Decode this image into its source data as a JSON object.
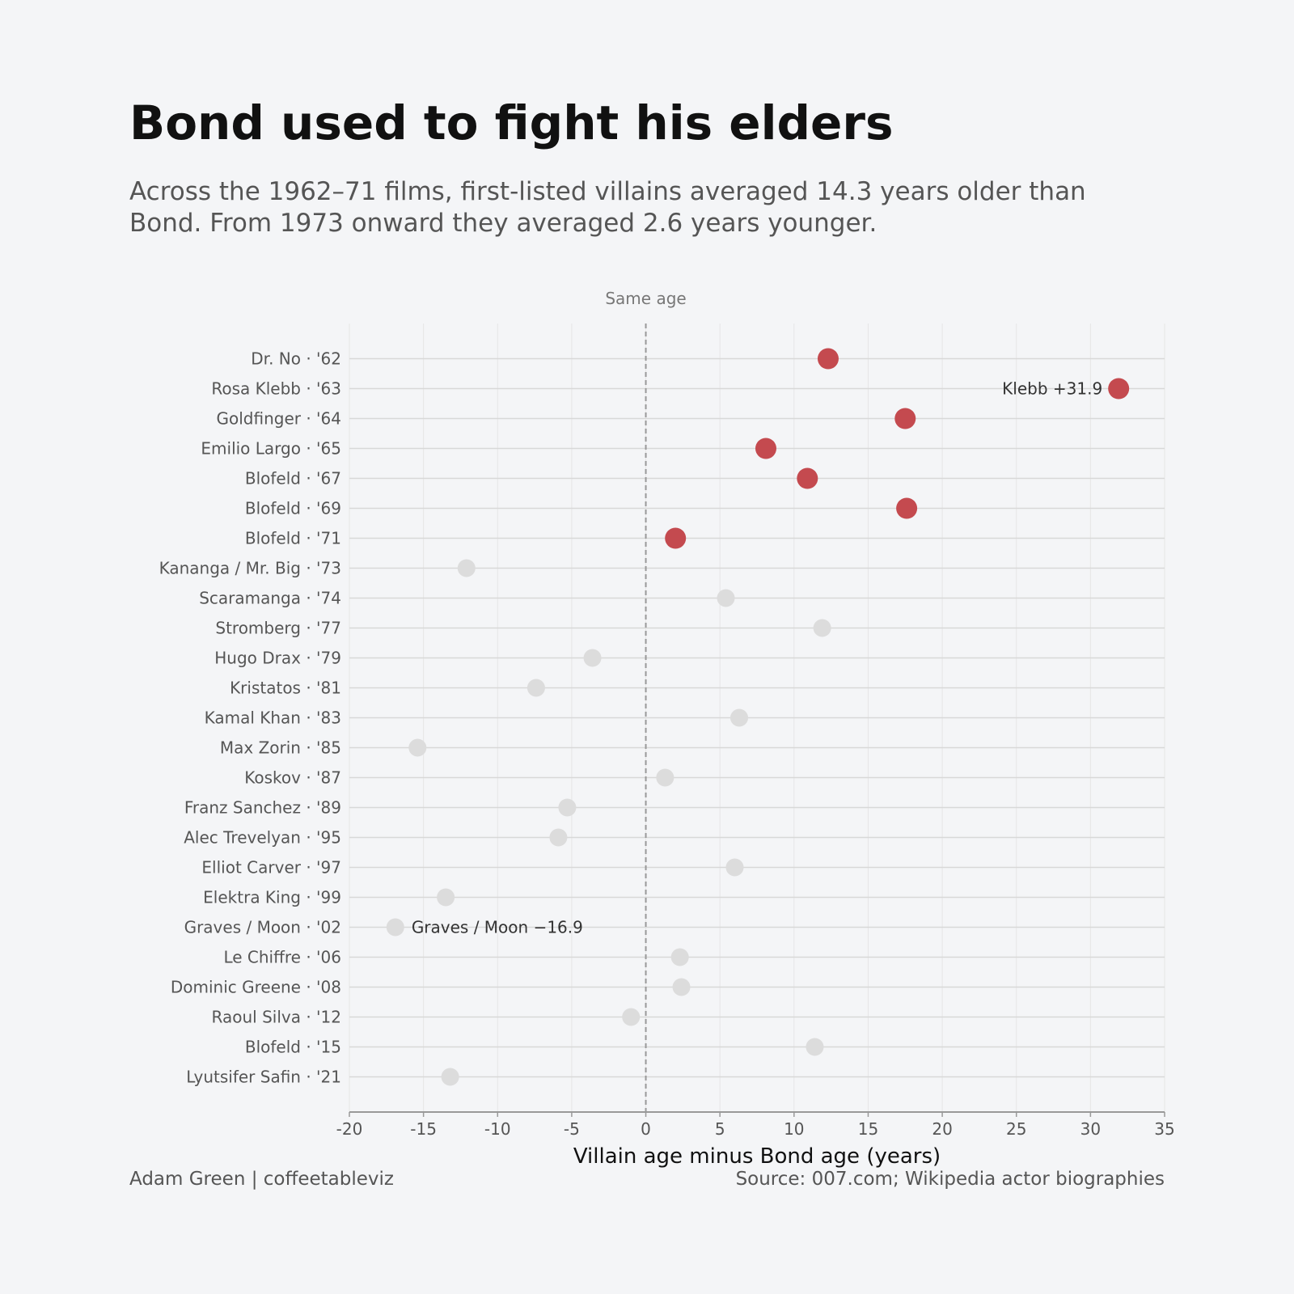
{
  "title": "Bond used to fight his elders",
  "subtitle": "Across the 1962–71 films, first-listed villains averaged 14.3 years older than Bond. From 1973 onward they averaged 2.6 years younger.",
  "footer": {
    "credit": "Adam Green | coffeetableviz",
    "source": "Source: 007.com; Wikipedia actor biographies"
  },
  "colors": {
    "highlight": "#c44a4f",
    "muted": "#dcdcdc",
    "grid": "#d8d8d8",
    "reference_line": "#999999"
  },
  "chart_data": {
    "type": "scatter",
    "orientation": "horizontal dot plot",
    "xlabel": "Villain age minus Bond age (years)",
    "xlim": [
      -20,
      35
    ],
    "xticks": [
      -20,
      -15,
      -10,
      -5,
      0,
      5,
      10,
      15,
      20,
      25,
      30,
      35
    ],
    "reference_line": {
      "x": 0,
      "label": "Same age",
      "style": "dashed"
    },
    "grid": true,
    "categories": [
      "Dr. No · '62",
      "Rosa Klebb · '63",
      "Goldfinger · '64",
      "Emilio Largo · '65",
      "Blofeld · '67",
      "Blofeld · '69",
      "Blofeld · '71",
      "Kananga / Mr. Big · '73",
      "Scaramanga · '74",
      "Stromberg · '77",
      "Hugo Drax · '79",
      "Kristatos · '81",
      "Kamal Khan · '83",
      "Max Zorin · '85",
      "Koskov · '87",
      "Franz Sanchez · '89",
      "Alec Trevelyan · '95",
      "Elliot Carver · '97",
      "Elektra King · '99",
      "Graves / Moon · '02",
      "Le Chiffre · '06",
      "Dominic Greene · '08",
      "Raoul Silva · '12",
      "Blofeld · '15",
      "Lyutsifer Safin · '21"
    ],
    "values": [
      12.3,
      31.9,
      17.5,
      8.1,
      10.9,
      17.6,
      2.0,
      -12.1,
      5.4,
      11.9,
      -3.6,
      -7.4,
      6.3,
      -15.4,
      1.3,
      -5.3,
      -5.9,
      6.0,
      -13.5,
      -16.9,
      2.3,
      2.4,
      -1.0,
      11.4,
      -13.2
    ],
    "highlighted": [
      true,
      true,
      true,
      true,
      true,
      true,
      true,
      false,
      false,
      false,
      false,
      false,
      false,
      false,
      false,
      false,
      false,
      false,
      false,
      false,
      false,
      false,
      false,
      false,
      false
    ],
    "annotations": [
      {
        "index": 1,
        "text": "Klebb +31.9",
        "side": "left"
      },
      {
        "index": 19,
        "text": "Graves / Moon −16.9",
        "side": "right"
      }
    ]
  }
}
